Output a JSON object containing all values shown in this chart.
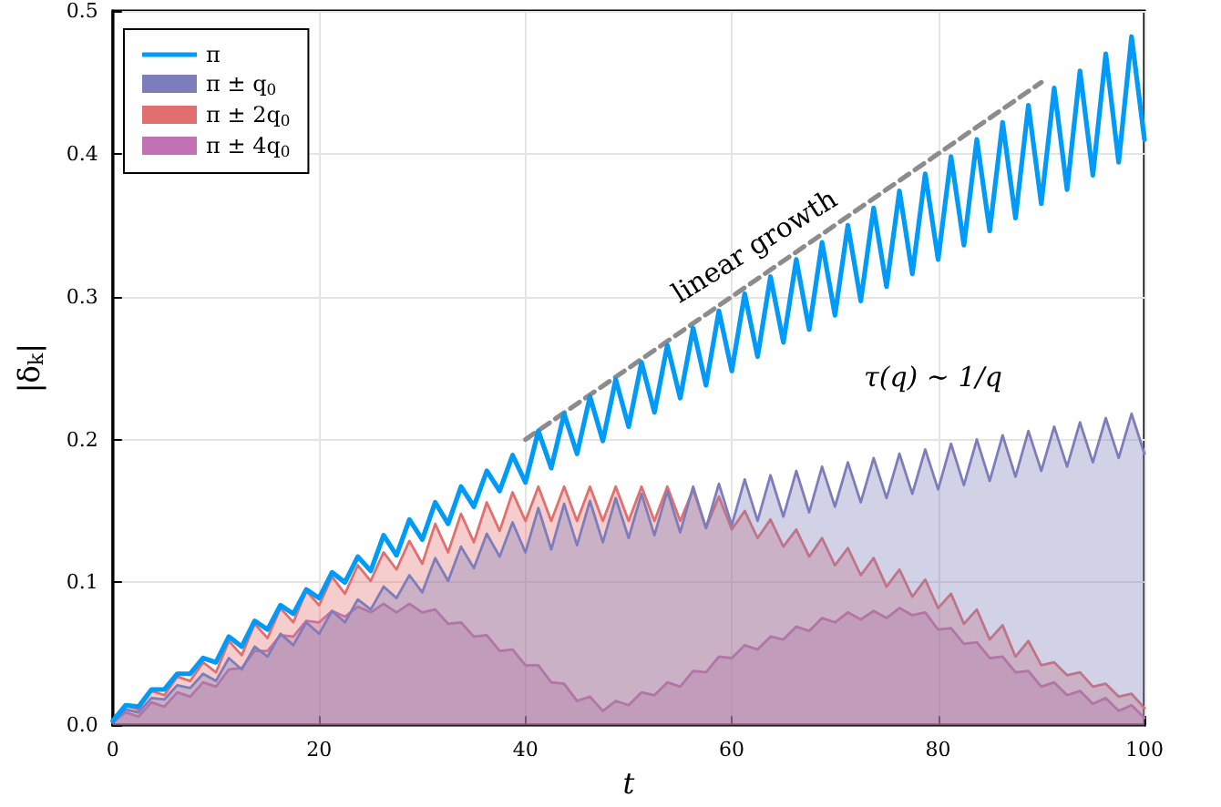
{
  "chart_data": {
    "type": "area",
    "xlabel": "t",
    "ylabel": "|δ$_{k}$|",
    "x": [
      0,
      1.25,
      2.5,
      3.75,
      5,
      6.25,
      7.5,
      8.75,
      10,
      11.25,
      12.5,
      13.75,
      15,
      16.25,
      17.5,
      18.75,
      20,
      21.25,
      22.5,
      23.75,
      25,
      26.25,
      27.5,
      28.75,
      30,
      31.25,
      32.5,
      33.75,
      35,
      36.25,
      37.5,
      38.75,
      40,
      41.25,
      42.5,
      43.75,
      45,
      46.25,
      47.5,
      48.75,
      50,
      51.25,
      52.5,
      53.75,
      55,
      56.25,
      57.5,
      58.75,
      60,
      61.25,
      62.5,
      63.75,
      65,
      66.25,
      67.5,
      68.75,
      70,
      71.25,
      72.5,
      73.75,
      75,
      76.25,
      77.5,
      78.75,
      80,
      81.25,
      82.5,
      83.75,
      85,
      86.25,
      87.5,
      88.75,
      90,
      91.25,
      92.5,
      93.75,
      95,
      96.25,
      97.5,
      98.75,
      100
    ],
    "series": [
      {
        "name": "π",
        "type": "line",
        "color": "#009af9",
        "values": [
          0.003,
          0.014,
          0.013,
          0.025,
          0.025,
          0.036,
          0.036,
          0.047,
          0.044,
          0.062,
          0.055,
          0.073,
          0.067,
          0.084,
          0.078,
          0.095,
          0.089,
          0.107,
          0.1,
          0.118,
          0.108,
          0.133,
          0.119,
          0.144,
          0.13,
          0.156,
          0.141,
          0.167,
          0.153,
          0.178,
          0.164,
          0.189,
          0.17,
          0.206,
          0.18,
          0.218,
          0.19,
          0.23,
          0.199,
          0.242,
          0.209,
          0.254,
          0.219,
          0.266,
          0.229,
          0.278,
          0.238,
          0.29,
          0.248,
          0.302,
          0.258,
          0.314,
          0.268,
          0.326,
          0.277,
          0.338,
          0.287,
          0.35,
          0.297,
          0.362,
          0.307,
          0.374,
          0.316,
          0.386,
          0.326,
          0.398,
          0.336,
          0.41,
          0.346,
          0.422,
          0.355,
          0.434,
          0.365,
          0.446,
          0.375,
          0.458,
          0.385,
          0.47,
          0.394,
          0.482,
          0.41
        ]
      },
      {
        "name": "π ± q$_{0}$",
        "color": "#7d7dbb",
        "values": [
          0.002,
          0.011,
          0.009,
          0.019,
          0.018,
          0.028,
          0.026,
          0.036,
          0.031,
          0.047,
          0.039,
          0.055,
          0.048,
          0.064,
          0.056,
          0.072,
          0.064,
          0.08,
          0.072,
          0.088,
          0.081,
          0.097,
          0.089,
          0.105,
          0.093,
          0.117,
          0.101,
          0.125,
          0.11,
          0.134,
          0.118,
          0.142,
          0.121,
          0.152,
          0.123,
          0.155,
          0.126,
          0.157,
          0.128,
          0.159,
          0.131,
          0.162,
          0.133,
          0.164,
          0.135,
          0.167,
          0.138,
          0.169,
          0.14,
          0.172,
          0.143,
          0.175,
          0.146,
          0.178,
          0.149,
          0.181,
          0.153,
          0.184,
          0.156,
          0.187,
          0.159,
          0.19,
          0.162,
          0.193,
          0.165,
          0.197,
          0.168,
          0.2,
          0.171,
          0.203,
          0.174,
          0.206,
          0.178,
          0.209,
          0.181,
          0.212,
          0.184,
          0.215,
          0.187,
          0.218,
          0.19
        ]
      },
      {
        "name": "π ± 2q$_{0}$",
        "color": "#e26f6f",
        "values": [
          0.002,
          0.014,
          0.011,
          0.024,
          0.021,
          0.034,
          0.031,
          0.044,
          0.037,
          0.059,
          0.049,
          0.071,
          0.061,
          0.082,
          0.072,
          0.094,
          0.084,
          0.104,
          0.092,
          0.112,
          0.101,
          0.121,
          0.109,
          0.129,
          0.113,
          0.141,
          0.121,
          0.148,
          0.128,
          0.156,
          0.136,
          0.163,
          0.143,
          0.167,
          0.143,
          0.167,
          0.143,
          0.167,
          0.143,
          0.167,
          0.143,
          0.167,
          0.143,
          0.167,
          0.143,
          0.165,
          0.138,
          0.16,
          0.137,
          0.15,
          0.131,
          0.144,
          0.125,
          0.137,
          0.118,
          0.131,
          0.112,
          0.124,
          0.105,
          0.117,
          0.097,
          0.109,
          0.09,
          0.102,
          0.082,
          0.092,
          0.071,
          0.081,
          0.06,
          0.07,
          0.048,
          0.059,
          0.042,
          0.044,
          0.035,
          0.037,
          0.027,
          0.029,
          0.02,
          0.022,
          0.012
        ]
      },
      {
        "name": "π ± 4q$_{0}$",
        "color": "#c271b4",
        "values": [
          0.002,
          0.009,
          0.006,
          0.016,
          0.013,
          0.023,
          0.02,
          0.03,
          0.027,
          0.039,
          0.04,
          0.052,
          0.052,
          0.063,
          0.062,
          0.073,
          0.072,
          0.08,
          0.076,
          0.083,
          0.079,
          0.085,
          0.079,
          0.085,
          0.079,
          0.081,
          0.071,
          0.072,
          0.062,
          0.063,
          0.052,
          0.053,
          0.042,
          0.042,
          0.03,
          0.029,
          0.017,
          0.02,
          0.01,
          0.017,
          0.014,
          0.023,
          0.021,
          0.03,
          0.027,
          0.038,
          0.037,
          0.048,
          0.047,
          0.056,
          0.053,
          0.062,
          0.06,
          0.069,
          0.066,
          0.075,
          0.072,
          0.079,
          0.074,
          0.08,
          0.075,
          0.082,
          0.077,
          0.079,
          0.067,
          0.068,
          0.057,
          0.058,
          0.047,
          0.048,
          0.037,
          0.038,
          0.027,
          0.03,
          0.021,
          0.024,
          0.015,
          0.019,
          0.01,
          0.014,
          0.005
        ]
      },
      {
        "type": "line",
        "color": "#8c8c8c",
        "line_style": "dashed",
        "x": [
          40,
          90
        ],
        "values": [
          0.2,
          0.45
        ]
      }
    ],
    "annotations": [
      "linear growth",
      "τ(q) ∼ 1/q"
    ],
    "xlim": [
      0,
      100
    ],
    "xticks": [
      0,
      20,
      40,
      60,
      80,
      100
    ],
    "ylim": [
      0,
      0.5
    ],
    "yticks": [
      {
        "value": 0,
        "label": "0.0"
      },
      {
        "value": 0.1,
        "label": "0.1"
      },
      {
        "value": 0.2,
        "label": "0.2"
      },
      {
        "value": 0.3,
        "label": "0.3"
      },
      {
        "value": 0.4,
        "label": "0.4"
      },
      {
        "value": 0.5,
        "label": "0.5"
      }
    ],
    "grid": true,
    "legend": "top left",
    "marker": "none"
  }
}
